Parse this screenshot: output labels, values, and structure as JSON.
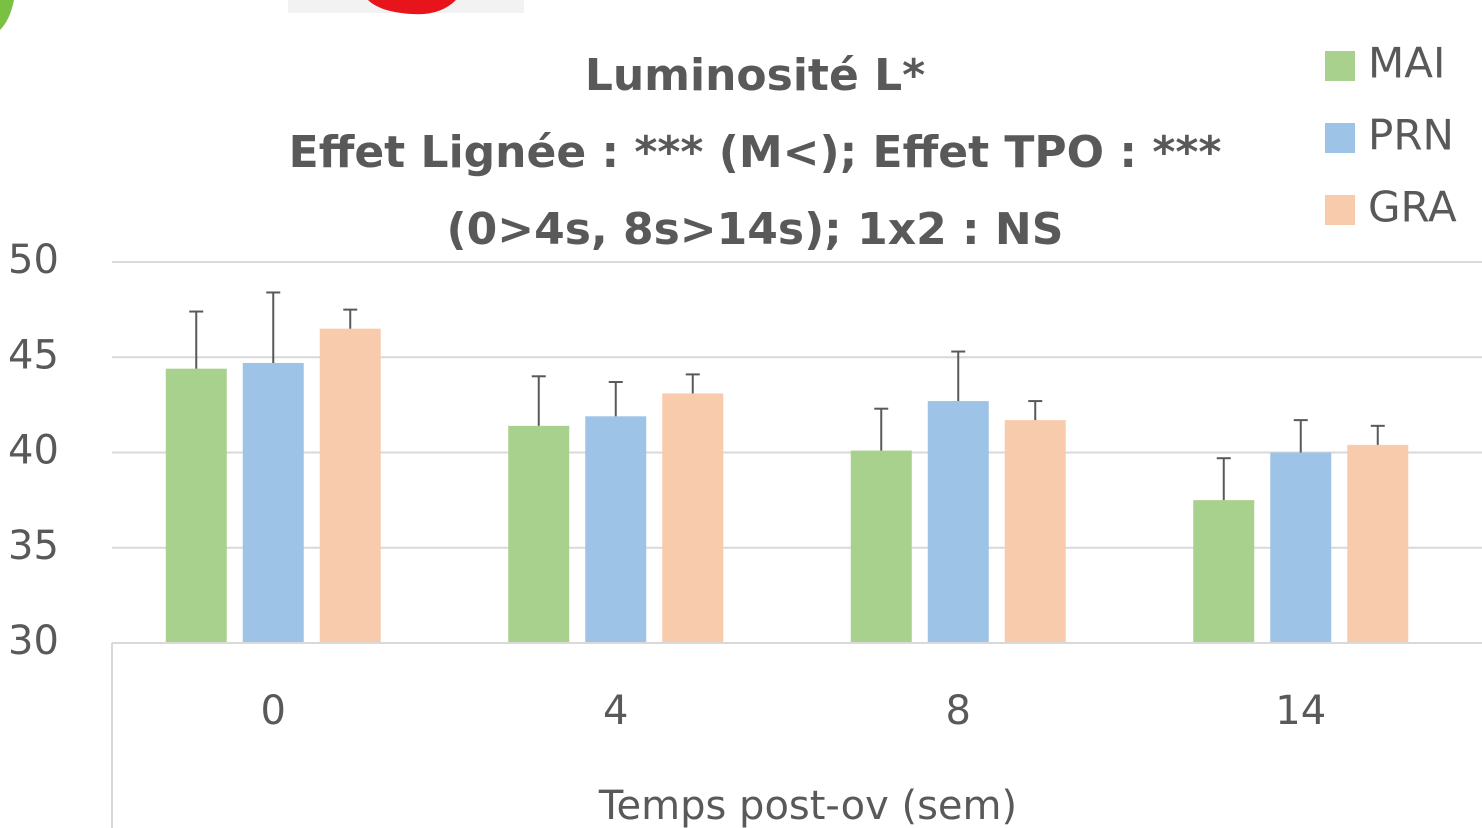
{
  "chart_data": {
    "type": "bar",
    "title": [
      "Luminosité L*",
      "Effet Lignée : *** (M<); Effet TPO : ***",
      "(0>4s, 8s>14s); 1x2 : NS"
    ],
    "x_label": "Temps post-ov (sem)",
    "categories": [
      "0",
      "4",
      "8",
      "14"
    ],
    "series": [
      {
        "name": "MAI",
        "color": "#a9d18e",
        "values": [
          44.4,
          41.4,
          40.1,
          37.5
        ],
        "errors": [
          3.0,
          2.6,
          2.2,
          2.2
        ]
      },
      {
        "name": "PRN",
        "color": "#9dc3e6",
        "values": [
          44.7,
          41.9,
          42.7,
          40.0
        ],
        "errors": [
          3.7,
          1.8,
          2.6,
          1.7
        ]
      },
      {
        "name": "GRA",
        "color": "#f8cbad",
        "values": [
          46.5,
          43.1,
          41.7,
          40.4
        ],
        "errors": [
          1.0,
          1.0,
          1.0,
          1.0
        ]
      }
    ],
    "ylim": [
      30,
      50
    ],
    "yticks": [
      30,
      35,
      40,
      45,
      50
    ],
    "grid": true,
    "legend": "top-right"
  }
}
